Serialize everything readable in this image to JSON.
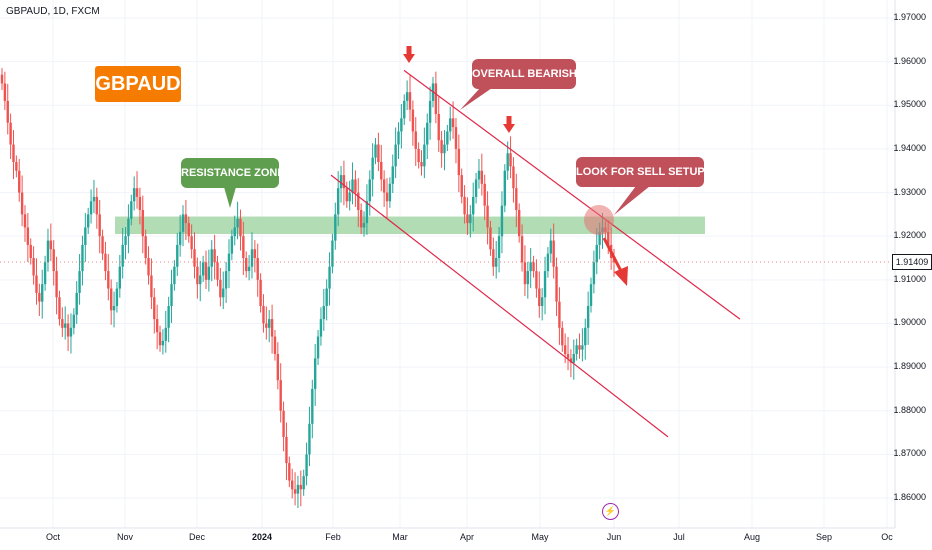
{
  "header": {
    "symbol": "GBPAUD, 1D, FXCM"
  },
  "annotations": {
    "ticker_label": "GBPAUD",
    "resistance_label": "RESISTANCE ZONE",
    "bearish_label": "OVERALL BEARISH",
    "sell_label": "LOOK FOR SELL SETUPS"
  },
  "price_tag": "1.91409",
  "colors": {
    "bull": "#26a69a",
    "bear": "#ef5350",
    "zone": "#a5d6a7",
    "channel": "#e0284a",
    "arrow": "#e53935",
    "accent": "#f57c00"
  },
  "event_icon": "lightning-icon",
  "chart_data": {
    "type": "candlestick",
    "title": "GBPAUD, 1D, FXCM",
    "x_ticks": [
      "Oct",
      "Nov",
      "Dec",
      "2024",
      "Feb",
      "Mar",
      "Apr",
      "May",
      "Jun",
      "Jul",
      "Aug",
      "Sep",
      "Oc"
    ],
    "y_ticks": [
      "1.97000",
      "1.96000",
      "1.95000",
      "1.94000",
      "1.93000",
      "1.92000",
      "1.91000",
      "1.90000",
      "1.89000",
      "1.88000",
      "1.87000",
      "1.86000"
    ],
    "ylim": [
      1.855,
      1.975
    ],
    "last_price": 1.91409,
    "resistance_zone": [
      1.9205,
      1.9245
    ],
    "channel_upper": {
      "from": [
        "2024-03-01",
        1.958
      ],
      "to": [
        "2024-07-20",
        1.901
      ]
    },
    "channel_lower": {
      "from": [
        "2024-02-01",
        1.934
      ],
      "to": [
        "2024-06-20",
        1.874
      ]
    },
    "closes": [
      1.955,
      1.951,
      1.946,
      1.941,
      1.937,
      1.935,
      1.93,
      1.925,
      1.922,
      1.918,
      1.915,
      1.911,
      1.907,
      1.905,
      1.909,
      1.914,
      1.919,
      1.917,
      1.912,
      1.906,
      1.901,
      1.899,
      1.9,
      1.897,
      1.899,
      1.902,
      1.907,
      1.912,
      1.918,
      1.922,
      1.925,
      1.928,
      1.929,
      1.925,
      1.92,
      1.916,
      1.912,
      1.908,
      1.903,
      1.904,
      1.908,
      1.913,
      1.918,
      1.92,
      1.924,
      1.928,
      1.931,
      1.929,
      1.926,
      1.92,
      1.915,
      1.911,
      1.906,
      1.901,
      1.898,
      1.895,
      1.896,
      1.899,
      1.904,
      1.909,
      1.913,
      1.918,
      1.921,
      1.925,
      1.923,
      1.92,
      1.917,
      1.913,
      1.909,
      1.911,
      1.914,
      1.91,
      1.913,
      1.917,
      1.914,
      1.91,
      1.906,
      1.908,
      1.912,
      1.916,
      1.92,
      1.922,
      1.924,
      1.92,
      1.915,
      1.912,
      1.913,
      1.917,
      1.915,
      1.91,
      1.904,
      1.9,
      1.899,
      1.901,
      1.897,
      1.893,
      1.887,
      1.88,
      1.874,
      1.868,
      1.864,
      1.862,
      1.861,
      1.863,
      1.862,
      1.865,
      1.87,
      1.877,
      1.885,
      1.892,
      1.897,
      1.901,
      1.904,
      1.908,
      1.913,
      1.919,
      1.925,
      1.931,
      1.934,
      1.931,
      1.928,
      1.93,
      1.933,
      1.93,
      1.926,
      1.922,
      1.923,
      1.928,
      1.933,
      1.938,
      1.941,
      1.937,
      1.933,
      1.93,
      1.928,
      1.932,
      1.936,
      1.941,
      1.944,
      1.947,
      1.951,
      1.953,
      1.949,
      1.944,
      1.94,
      1.937,
      1.936,
      1.941,
      1.946,
      1.951,
      1.955,
      1.948,
      1.942,
      1.939,
      1.941,
      1.944,
      1.947,
      1.945,
      1.94,
      1.934,
      1.929,
      1.925,
      1.923,
      1.925,
      1.929,
      1.933,
      1.935,
      1.932,
      1.927,
      1.922,
      1.917,
      1.913,
      1.915,
      1.92,
      1.927,
      1.935,
      1.939,
      1.936,
      1.931,
      1.926,
      1.92,
      1.914,
      1.909,
      1.912,
      1.914,
      1.912,
      1.908,
      1.904,
      1.906,
      1.912,
      1.916,
      1.919,
      1.913,
      1.905,
      1.899,
      1.895,
      1.893,
      1.892,
      1.891,
      1.893,
      1.895,
      1.894,
      1.895,
      1.899,
      1.904,
      1.909,
      1.914,
      1.918,
      1.921,
      1.922,
      1.921,
      1.918,
      1.915,
      1.914
    ]
  }
}
